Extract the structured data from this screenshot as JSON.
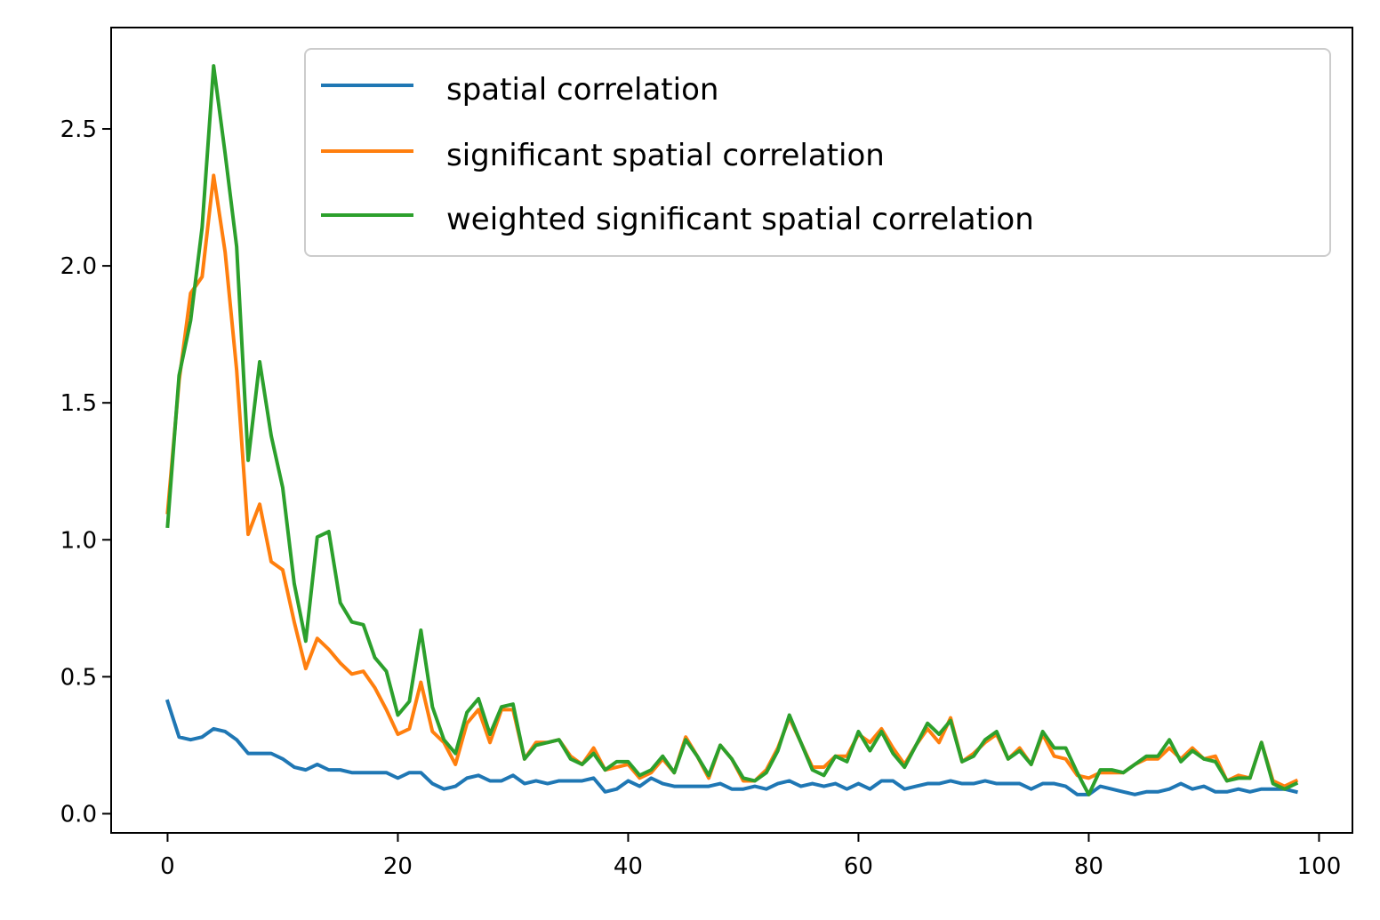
{
  "chart_data": {
    "type": "line",
    "title": "",
    "xlabel": "",
    "ylabel": "",
    "xlim": [
      -4.9,
      102.9
    ],
    "ylim": [
      -0.07,
      2.87
    ],
    "x_ticks": [
      0,
      20,
      40,
      60,
      80,
      100
    ],
    "y_ticks": [
      0.0,
      0.5,
      1.0,
      1.5,
      2.0,
      2.5
    ],
    "x_tick_labels": [
      "0",
      "20",
      "40",
      "60",
      "80",
      "100"
    ],
    "y_tick_labels": [
      "0.0",
      "0.5",
      "1.0",
      "1.5",
      "2.0",
      "2.5"
    ],
    "grid": false,
    "legend_position": "upper right",
    "x_start": 0,
    "series": [
      {
        "name": "spatial correlation",
        "color": "#1f77b4",
        "values": [
          0.41,
          0.28,
          0.27,
          0.28,
          0.31,
          0.3,
          0.27,
          0.22,
          0.22,
          0.22,
          0.2,
          0.17,
          0.16,
          0.18,
          0.16,
          0.16,
          0.15,
          0.15,
          0.15,
          0.15,
          0.13,
          0.15,
          0.15,
          0.11,
          0.09,
          0.1,
          0.13,
          0.14,
          0.12,
          0.12,
          0.14,
          0.11,
          0.12,
          0.11,
          0.12,
          0.12,
          0.12,
          0.13,
          0.08,
          0.09,
          0.12,
          0.1,
          0.13,
          0.11,
          0.1,
          0.1,
          0.1,
          0.1,
          0.11,
          0.09,
          0.09,
          0.1,
          0.09,
          0.11,
          0.12,
          0.1,
          0.11,
          0.1,
          0.11,
          0.09,
          0.11,
          0.09,
          0.12,
          0.12,
          0.09,
          0.1,
          0.11,
          0.11,
          0.12,
          0.11,
          0.11,
          0.12,
          0.11,
          0.11,
          0.11,
          0.09,
          0.11,
          0.11,
          0.1,
          0.07,
          0.07,
          0.1,
          0.09,
          0.08,
          0.07,
          0.08,
          0.08,
          0.09,
          0.11,
          0.09,
          0.1,
          0.08,
          0.08,
          0.09,
          0.08,
          0.09,
          0.09,
          0.09,
          0.08
        ]
      },
      {
        "name": "significant spatial correlation",
        "color": "#ff7f0e",
        "values": [
          1.1,
          1.58,
          1.9,
          1.96,
          2.33,
          2.05,
          1.62,
          1.02,
          1.13,
          0.92,
          0.89,
          0.7,
          0.53,
          0.64,
          0.6,
          0.55,
          0.51,
          0.52,
          0.46,
          0.38,
          0.29,
          0.31,
          0.48,
          0.3,
          0.26,
          0.18,
          0.33,
          0.38,
          0.26,
          0.38,
          0.38,
          0.2,
          0.26,
          0.26,
          0.27,
          0.21,
          0.18,
          0.24,
          0.16,
          0.17,
          0.18,
          0.13,
          0.15,
          0.2,
          0.15,
          0.28,
          0.21,
          0.13,
          0.25,
          0.2,
          0.12,
          0.12,
          0.16,
          0.24,
          0.35,
          0.26,
          0.17,
          0.17,
          0.21,
          0.21,
          0.29,
          0.26,
          0.31,
          0.24,
          0.18,
          0.25,
          0.31,
          0.26,
          0.35,
          0.19,
          0.22,
          0.26,
          0.29,
          0.2,
          0.24,
          0.18,
          0.29,
          0.21,
          0.2,
          0.14,
          0.13,
          0.15,
          0.15,
          0.15,
          0.18,
          0.2,
          0.2,
          0.24,
          0.2,
          0.24,
          0.2,
          0.21,
          0.12,
          0.14,
          0.13,
          0.26,
          0.12,
          0.1,
          0.12
        ]
      },
      {
        "name": "weighted significant spatial correlation",
        "color": "#2ca02c",
        "values": [
          1.05,
          1.6,
          1.8,
          2.14,
          2.73,
          2.41,
          2.07,
          1.29,
          1.65,
          1.38,
          1.19,
          0.84,
          0.63,
          1.01,
          1.03,
          0.77,
          0.7,
          0.69,
          0.57,
          0.52,
          0.36,
          0.41,
          0.67,
          0.39,
          0.27,
          0.22,
          0.37,
          0.42,
          0.29,
          0.39,
          0.4,
          0.2,
          0.25,
          0.26,
          0.27,
          0.2,
          0.18,
          0.22,
          0.16,
          0.19,
          0.19,
          0.14,
          0.16,
          0.21,
          0.15,
          0.27,
          0.21,
          0.14,
          0.25,
          0.2,
          0.13,
          0.12,
          0.15,
          0.23,
          0.36,
          0.26,
          0.16,
          0.14,
          0.21,
          0.19,
          0.3,
          0.23,
          0.3,
          0.22,
          0.17,
          0.25,
          0.33,
          0.29,
          0.34,
          0.19,
          0.21,
          0.27,
          0.3,
          0.2,
          0.23,
          0.18,
          0.3,
          0.24,
          0.24,
          0.15,
          0.07,
          0.16,
          0.16,
          0.15,
          0.18,
          0.21,
          0.21,
          0.27,
          0.19,
          0.23,
          0.2,
          0.19,
          0.12,
          0.13,
          0.13,
          0.26,
          0.11,
          0.09,
          0.11
        ]
      }
    ]
  }
}
